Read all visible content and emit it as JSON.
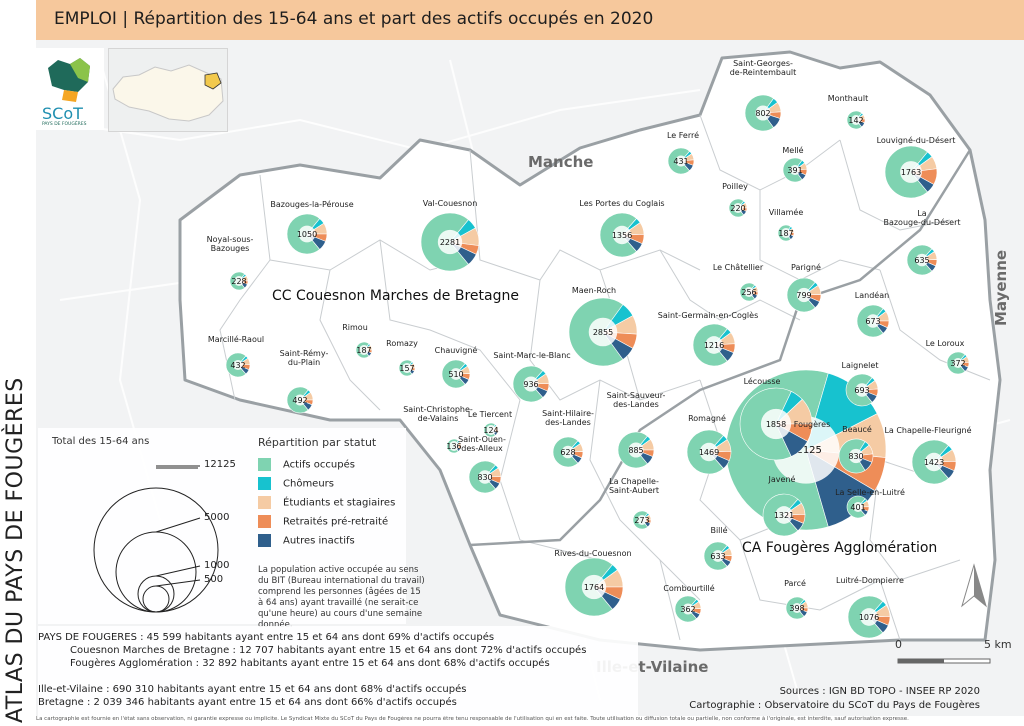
{
  "header": {
    "title": "EMPLOI | Répartition des 15-64 ans et part des actifs occupés en 2020"
  },
  "side_title": "ATLAS DU PAYS DE FOUGÈRES",
  "logo": {
    "text": "SCoT",
    "subtext": "PAYS DE FOUGÈRES"
  },
  "colors": {
    "actifs": "#7fd3b1",
    "chomeurs": "#17c2cf",
    "etudiants": "#f5cba4",
    "retraites": "#ee8d58",
    "inactifs": "#2f5f8c"
  },
  "departments": [
    "Manche",
    "Mayenne",
    "Ille-et-Vilaine"
  ],
  "epcis": [
    "CC Couesnon Marches de Bretagne",
    "CA Fougères Agglomération"
  ],
  "communes": [
    {
      "name": "Saint-Georges-\nde-Reintembault",
      "total": "802"
    },
    {
      "name": "Monthault",
      "total": "142"
    },
    {
      "name": "Louvigné-du-Désert",
      "total": "1763"
    },
    {
      "name": "Le Ferré",
      "total": "431"
    },
    {
      "name": "Mellé",
      "total": "391"
    },
    {
      "name": "Poilley",
      "total": "220"
    },
    {
      "name": "Villamée",
      "total": "187"
    },
    {
      "name": "La\nBazouge-du-Désert",
      "total": "635"
    },
    {
      "name": "Bazouges-la-Pérouse",
      "total": "1050"
    },
    {
      "name": "Val-Couesnon",
      "total": "2281"
    },
    {
      "name": "Les Portes du Coglais",
      "total": "1356"
    },
    {
      "name": "Noyal-sous-\nBazouges",
      "total": "228"
    },
    {
      "name": "Le Châtellier",
      "total": "256"
    },
    {
      "name": "Parigné",
      "total": "799"
    },
    {
      "name": "Landéan",
      "total": "673"
    },
    {
      "name": "Maen-Roch",
      "total": "2855"
    },
    {
      "name": "Saint-Germain-en-Coglès",
      "total": "1216"
    },
    {
      "name": "Le Loroux",
      "total": "372"
    },
    {
      "name": "Marcillé-Raoul",
      "total": "432"
    },
    {
      "name": "Rimou",
      "total": "187"
    },
    {
      "name": "Romazy",
      "total": "157"
    },
    {
      "name": "Chauvigné",
      "total": "510"
    },
    {
      "name": "Saint-Marc-le-Blanc",
      "total": "936"
    },
    {
      "name": "Saint-Rémy-\ndu-Plain",
      "total": "492"
    },
    {
      "name": "Laignelet",
      "total": "693"
    },
    {
      "name": "Lécousse",
      "total": "1858"
    },
    {
      "name": "Fougères",
      "total": "12125"
    },
    {
      "name": "Beaucé",
      "total": "830"
    },
    {
      "name": "La Chapelle-Fleurigné",
      "total": "1423"
    },
    {
      "name": "Saint-Christophe-\nde-Valains",
      "total": "136"
    },
    {
      "name": "Le Tiercent",
      "total": "124"
    },
    {
      "name": "Saint-Hilaire-\ndes-Landes",
      "total": "628"
    },
    {
      "name": "Saint-Sauveur-\ndes-Landes",
      "total": "885"
    },
    {
      "name": "Romagné",
      "total": "1469"
    },
    {
      "name": "Saint-Ouen-\ndes-Alleux",
      "total": "830"
    },
    {
      "name": "Javené",
      "total": "1321"
    },
    {
      "name": "La Selle-en-Luitré",
      "total": "401"
    },
    {
      "name": "La Chapelle-\nSaint-Aubert",
      "total": "273"
    },
    {
      "name": "Billé",
      "total": "633"
    },
    {
      "name": "Rives-du-Couesnon",
      "total": "1764"
    },
    {
      "name": "Combourtillé",
      "total": "362"
    },
    {
      "name": "Parcé",
      "total": "398"
    },
    {
      "name": "Luitré-Dompierre",
      "total": "1076"
    }
  ],
  "legend": {
    "size_title": "Total des 15-64 ans",
    "size_values": [
      "12125",
      "5000",
      "1000",
      "500"
    ],
    "status_title": "Répartition par statut",
    "items": [
      {
        "label": "Actifs occupés",
        "color": "#7fd3b1"
      },
      {
        "label": "Chômeurs",
        "color": "#17c2cf"
      },
      {
        "label": "Étudiants et stagiaires",
        "color": "#f5cba4"
      },
      {
        "label": "Retraités pré-retraité",
        "color": "#ee8d58"
      },
      {
        "label": "Autres inactifs",
        "color": "#2f5f8c"
      }
    ],
    "note": "La population active occupée au sens du BIT (Bureau international du travail) comprend les personnes (âgées de 15 à 64 ans) ayant travaillé (ne serait-ce qu'une heure) au cours d'une semaine donnée."
  },
  "stats": [
    "PAYS DE FOUGERES : 45 599 habitants ayant entre 15 et 64 ans dont 69% d'actifs occupés",
    "Couesnon Marches de Bretagne :  12 707 habitants ayant entre 15 et 64 ans dont 72% d'actifs occupés",
    "Fougères Agglomération : 32 892 habitants ayant entre 15 et 64 ans dont 68% d'actifs occupés",
    "Ille-et-Vilaine : 690 310 habitants ayant entre 15 et 64 ans dont 68% d'actifs occupés",
    "Bretagne : 2 039 346 habitants ayant entre 15 et 64 ans dont 66% d'actifs occupés"
  ],
  "scale": {
    "start": "0",
    "end": "5 km"
  },
  "sources": [
    "Sources : IGN BD TOPO - INSEE RP 2020",
    "Cartographie : Observatoire du SCoT du Pays de Fougères"
  ],
  "disclaimer": "La cartographie est fournie en l'état sans observation, ni garantie expresse ou implicite. Le Syndicat Mixte du SCoT du Pays de Fougères ne pourra être tenu responsable de l'utilisation qui en est faite. Toute utilisation ou diffusion totale ou partielle, non conforme à l'originale, est interdite, sauf autorisation expresse."
}
